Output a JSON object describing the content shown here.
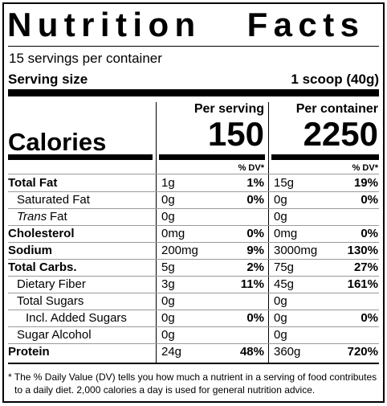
{
  "title": "Nutrition Facts",
  "servings": "15 servings per container",
  "serving_size": {
    "label": "Serving size",
    "value": "1 scoop (40g)"
  },
  "calories": {
    "label": "Calories",
    "per_serving_header": "Per serving",
    "per_serving": "150",
    "per_container_header": "Per container",
    "per_container": "2250"
  },
  "dv_header": "% DV*",
  "rows": [
    {
      "name": "Total Fat",
      "bold": true,
      "indent": 0,
      "serving": "1g",
      "serving_dv": "1%",
      "container": "15g",
      "container_dv": "19%"
    },
    {
      "name": "Saturated Fat",
      "bold": false,
      "indent": 1,
      "serving": "0g",
      "serving_dv": "0%",
      "container": "0g",
      "container_dv": "0%"
    },
    {
      "name_italic": "Trans",
      "name": "Fat",
      "bold": false,
      "indent": 1,
      "serving": "0g",
      "container": "0g"
    },
    {
      "name": "Cholesterol",
      "bold": true,
      "indent": 0,
      "serving": "0mg",
      "serving_dv": "0%",
      "container": "0mg",
      "container_dv": "0%"
    },
    {
      "name": "Sodium",
      "bold": true,
      "indent": 0,
      "serving": "200mg",
      "serving_dv": "9%",
      "container": "3000mg",
      "container_dv": "130%"
    },
    {
      "name": "Total Carbs.",
      "bold": true,
      "indent": 0,
      "serving": "5g",
      "serving_dv": "2%",
      "container": "75g",
      "container_dv": "27%"
    },
    {
      "name": "Dietary Fiber",
      "bold": false,
      "indent": 1,
      "serving": "3g",
      "serving_dv": "11%",
      "container": "45g",
      "container_dv": "161%"
    },
    {
      "name": "Total Sugars",
      "bold": false,
      "indent": 1,
      "serving": "0g",
      "container": "0g"
    },
    {
      "name": "Incl. Added Sugars",
      "bold": false,
      "indent": 2,
      "serving": "0g",
      "serving_dv": "0%",
      "container": "0g",
      "container_dv": "0%"
    },
    {
      "name": "Sugar Alcohol",
      "bold": false,
      "indent": 1,
      "serving": "0g",
      "container": "0g"
    },
    {
      "name": "Protein",
      "bold": true,
      "indent": 0,
      "serving": "24g",
      "serving_dv": "48%",
      "container": "360g",
      "container_dv": "720%"
    }
  ],
  "footnote": "* The % Daily Value (DV) tells you how much a nutrient in a serving of food contributes to a daily diet. 2,000 calories a day is used for general nutrition advice."
}
